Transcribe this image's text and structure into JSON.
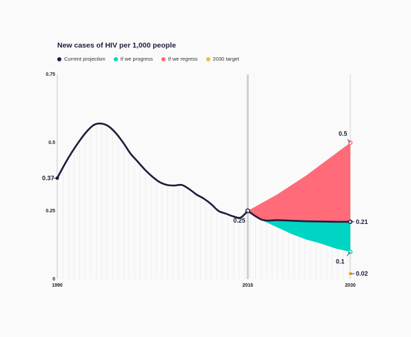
{
  "chart_data": {
    "type": "line",
    "title": "New cases of HIV per 1,000 people",
    "x_ticks": [
      "1990",
      "2016",
      "2030"
    ],
    "y_ticks": [
      "0",
      "0.25",
      "0.5",
      "0.75"
    ],
    "ylim": [
      0,
      0.75
    ],
    "xlim": [
      1990,
      2030
    ],
    "series": [
      {
        "name": "Current projection",
        "color": "#1d1d3b",
        "x": [
          1990,
          1991,
          1992,
          1993,
          1994,
          1995,
          1996,
          1997,
          1998,
          1999,
          2000,
          2001,
          2002,
          2003,
          2004,
          2005,
          2006,
          2007,
          2008,
          2009,
          2010,
          2011,
          2012,
          2013,
          2014,
          2015,
          2016,
          2018,
          2020,
          2022,
          2024,
          2026,
          2028,
          2030
        ],
        "values": [
          0.37,
          0.42,
          0.465,
          0.505,
          0.54,
          0.565,
          0.57,
          0.56,
          0.535,
          0.5,
          0.46,
          0.43,
          0.4,
          0.375,
          0.355,
          0.345,
          0.343,
          0.345,
          0.33,
          0.31,
          0.295,
          0.275,
          0.25,
          0.24,
          0.23,
          0.225,
          0.219,
          0.217,
          0.216,
          0.214,
          0.212,
          0.211,
          0.21,
          0.21
        ]
      },
      {
        "name": "If we progress",
        "color": "#00d4c3",
        "x": [
          2016,
          2018,
          2020,
          2022,
          2024,
          2026,
          2028,
          2030
        ],
        "values": [
          0.25,
          0.215,
          0.19,
          0.165,
          0.145,
          0.13,
          0.112,
          0.1
        ]
      },
      {
        "name": "If we regress",
        "color": "#ff6b78",
        "x": [
          2016,
          2018,
          2020,
          2022,
          2024,
          2026,
          2028,
          2030
        ],
        "values": [
          0.25,
          0.28,
          0.31,
          0.345,
          0.38,
          0.42,
          0.46,
          0.5
        ]
      },
      {
        "name": "2030 target",
        "color": "#f5b642",
        "x": [
          2030
        ],
        "values": [
          0.02
        ]
      }
    ],
    "annotations": [
      {
        "label": "0.37",
        "x": 1990,
        "y": 0.37,
        "side": "left"
      },
      {
        "label": "0.25",
        "x": 2016,
        "y": 0.25,
        "side": "below-left"
      },
      {
        "label": "0.5",
        "x": 2030,
        "y": 0.5,
        "side": "above-left"
      },
      {
        "label": "0.21",
        "x": 2030,
        "y": 0.21,
        "side": "right"
      },
      {
        "label": "0.1",
        "x": 2030,
        "y": 0.1,
        "side": "below-left"
      },
      {
        "label": "0.02",
        "x": 2030,
        "y": 0.02,
        "side": "right"
      }
    ],
    "legend_position": "top-left"
  }
}
